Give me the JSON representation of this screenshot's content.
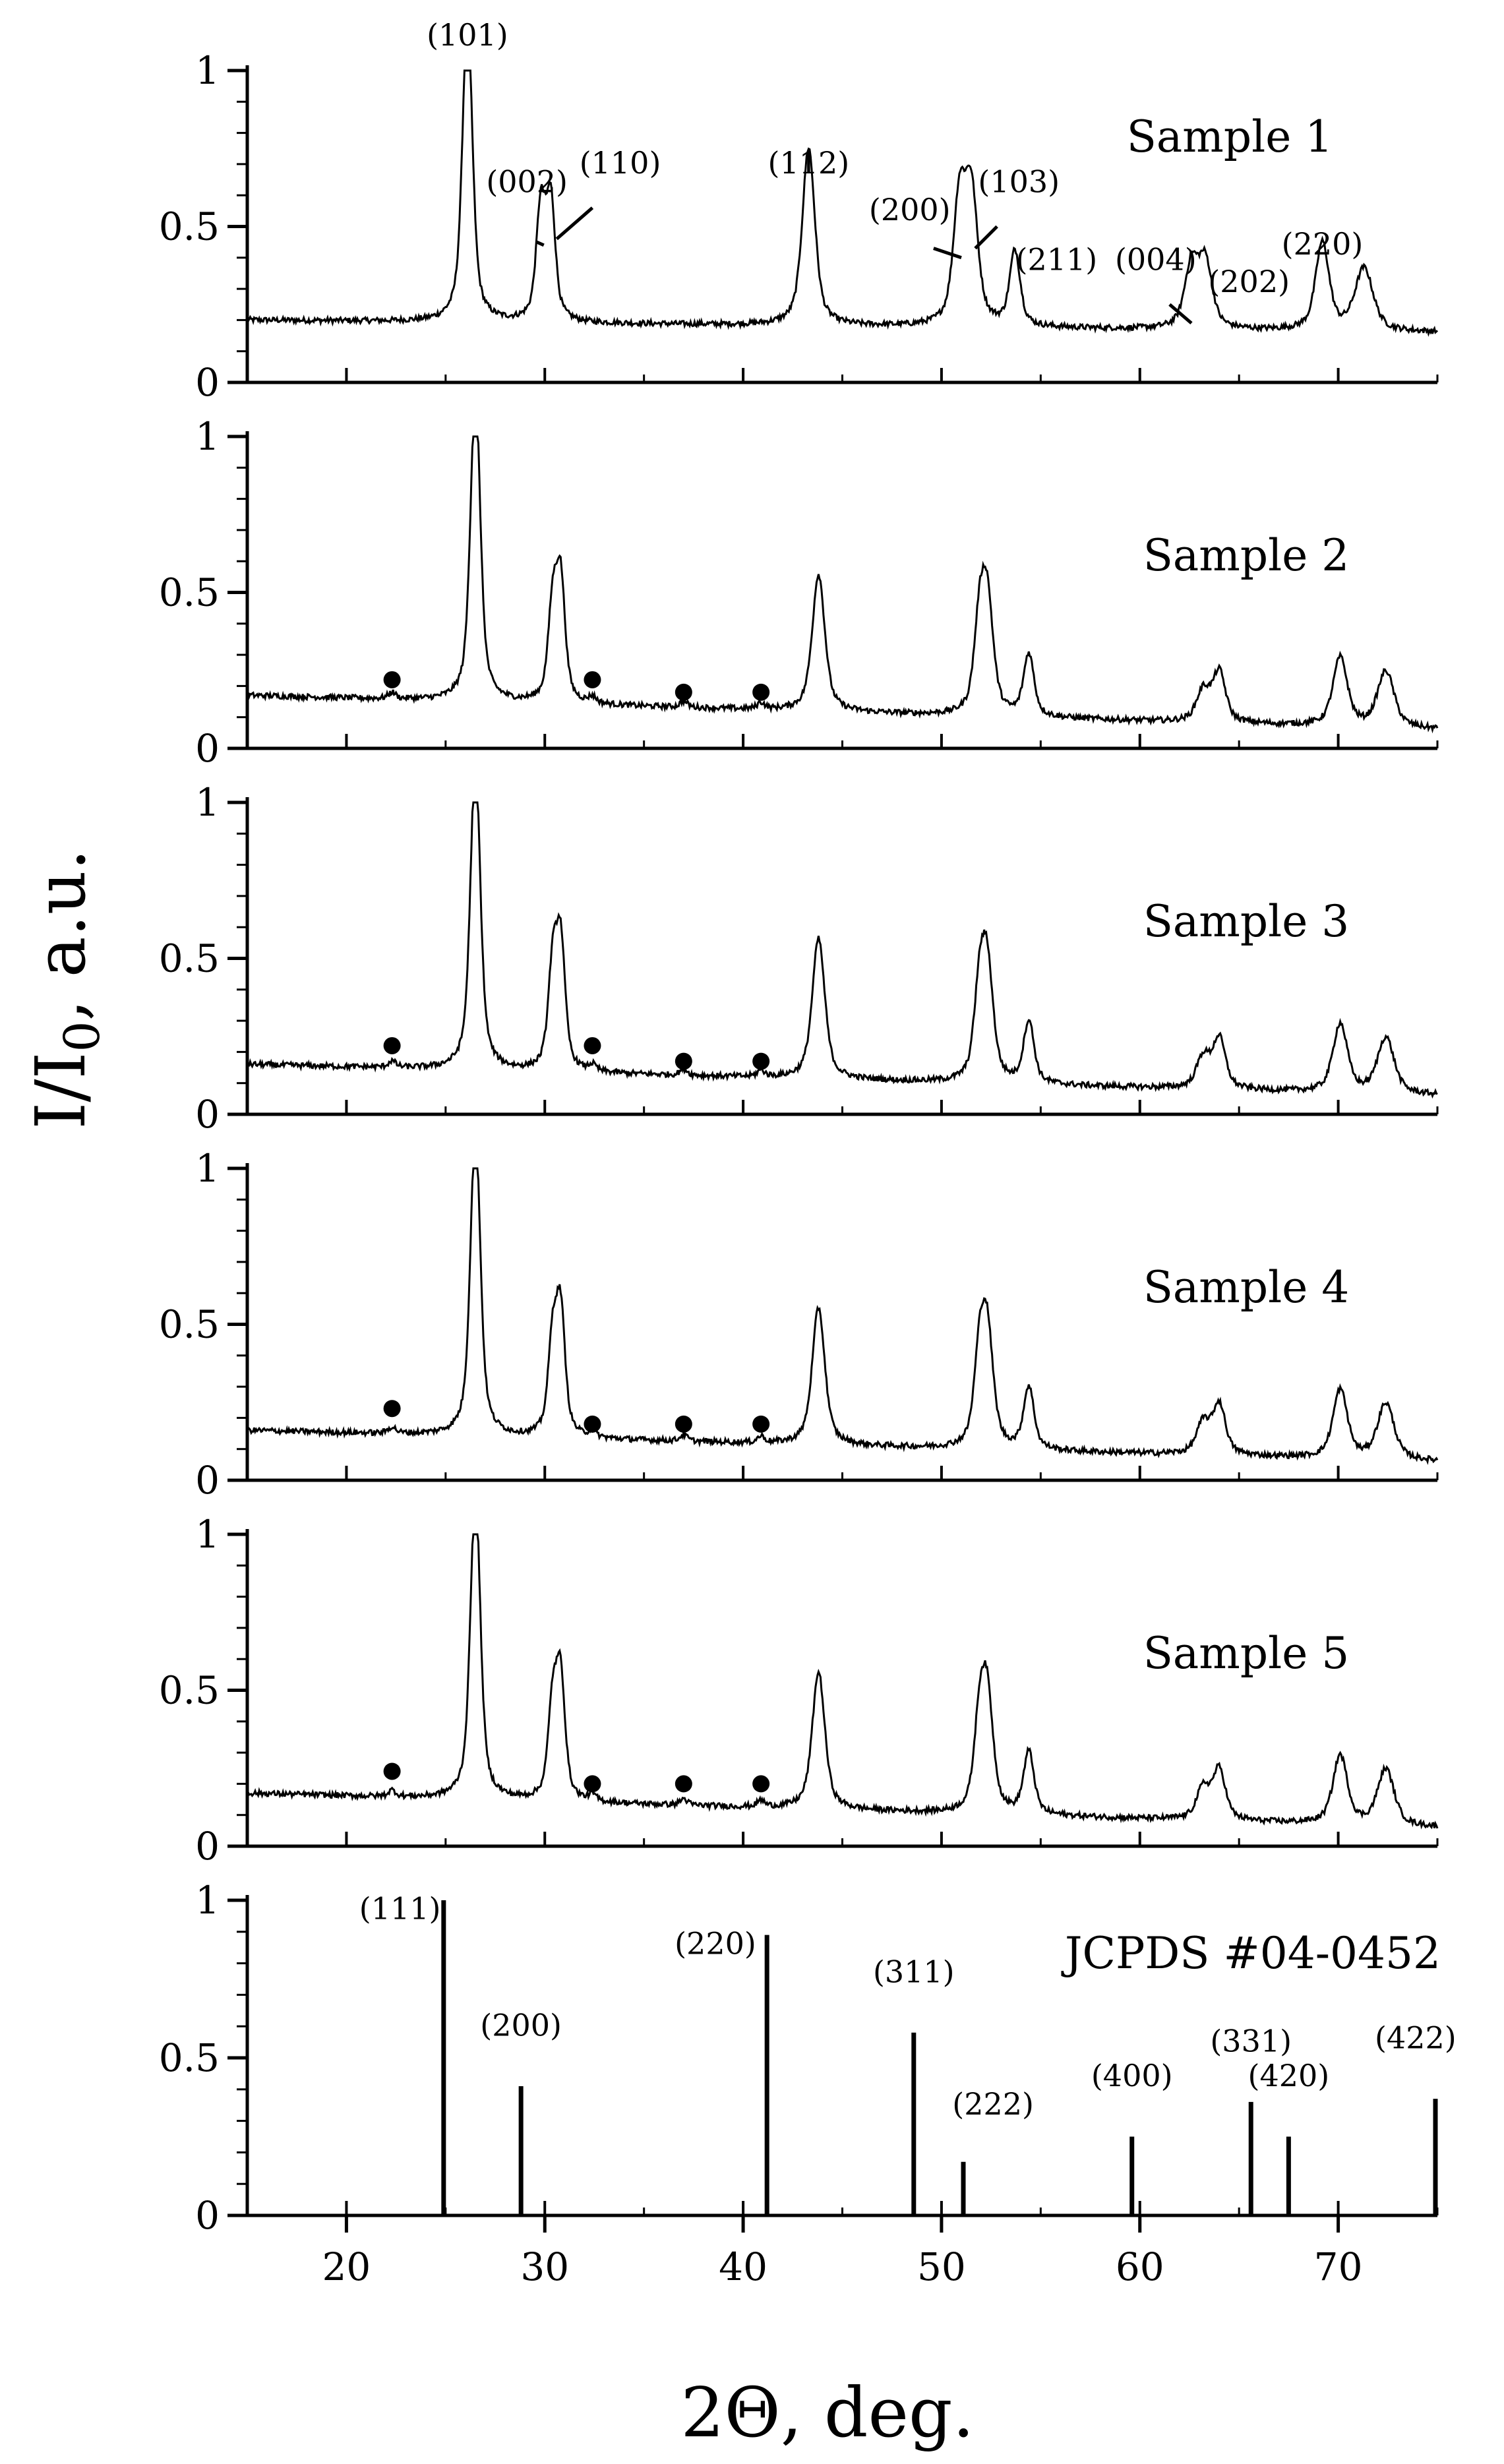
{
  "chart_data": {
    "type": "line",
    "layout": "vertically stacked panels sharing one x axis",
    "xlabel": "2Θ, deg.",
    "ylabel": "I/I0, a.u.",
    "ylabel_parts": {
      "main": "I/I",
      "sub": "0",
      "tail": ", a.u."
    },
    "xlim": [
      15,
      75
    ],
    "x_ticks": [
      20,
      30,
      40,
      50,
      60,
      70
    ],
    "y_ticks": [
      0,
      0.5,
      1
    ],
    "y_tick_labels": [
      "0",
      "0.5",
      "1"
    ],
    "panels": [
      {
        "name": "Sample 1",
        "type": "line",
        "ylim": [
          0,
          1
        ],
        "baseline": {
          "start": 0.2,
          "end": 0.16
        },
        "peaks": [
          {
            "x": 26.1,
            "y": 1.0,
            "w": 0.33
          },
          {
            "x": 29.8,
            "y": 0.36,
            "w": 0.3
          },
          {
            "x": 30.3,
            "y": 0.38,
            "w": 0.3
          },
          {
            "x": 43.3,
            "y": 0.57,
            "w": 0.42
          },
          {
            "x": 50.9,
            "y": 0.39,
            "w": 0.4
          },
          {
            "x": 51.5,
            "y": 0.42,
            "w": 0.42
          },
          {
            "x": 53.7,
            "y": 0.24,
            "w": 0.35
          },
          {
            "x": 62.6,
            "y": 0.2,
            "w": 0.45
          },
          {
            "x": 63.3,
            "y": 0.21,
            "w": 0.45
          },
          {
            "x": 69.2,
            "y": 0.28,
            "w": 0.45
          },
          {
            "x": 71.3,
            "y": 0.2,
            "w": 0.6
          }
        ],
        "peak_labels": [
          {
            "text": "(101)",
            "x": 26.1,
            "y": 1.08
          },
          {
            "text": "(002)",
            "x": 29.1,
            "y": 0.61
          },
          {
            "text": "(110)",
            "x": 33.8,
            "y": 0.67
          },
          {
            "text": "(112)",
            "x": 43.3,
            "y": 0.67
          },
          {
            "text": "(200)",
            "x": 48.4,
            "y": 0.52
          },
          {
            "text": "(103)",
            "x": 53.9,
            "y": 0.61
          },
          {
            "text": "(211)",
            "x": 55.8,
            "y": 0.36
          },
          {
            "text": "(004)",
            "x": 60.8,
            "y": 0.36
          },
          {
            "text": "(202)",
            "x": 65.5,
            "y": 0.29
          },
          {
            "text": "(220)",
            "x": 69.2,
            "y": 0.41
          }
        ],
        "leader_lines": [
          {
            "from": [
              29.6,
              0.45
            ],
            "to": [
              29.95,
              0.44
            ]
          },
          {
            "from": [
              32.4,
              0.56
            ],
            "to": [
              30.6,
              0.46
            ]
          },
          {
            "from": [
              49.6,
              0.43
            ],
            "to": [
              51.0,
              0.4
            ]
          },
          {
            "from": [
              52.8,
              0.5
            ],
            "to": [
              51.7,
              0.43
            ]
          },
          {
            "from": [
              61.5,
              0.25
            ],
            "to": [
              62.6,
              0.19
            ]
          }
        ],
        "markers": []
      },
      {
        "name": "Sample 2",
        "type": "line",
        "ylim": [
          0,
          1
        ],
        "baseline": {
          "start": 0.17,
          "end": 0.06
        },
        "peaks": [
          {
            "x": 22.3,
            "y": 0.02,
            "w": 0.25
          },
          {
            "x": 26.5,
            "y": 1.0,
            "w": 0.33
          },
          {
            "x": 30.4,
            "y": 0.3,
            "w": 0.3
          },
          {
            "x": 30.8,
            "y": 0.38,
            "w": 0.3
          },
          {
            "x": 32.4,
            "y": 0.02,
            "w": 0.25
          },
          {
            "x": 37.0,
            "y": 0.02,
            "w": 0.25
          },
          {
            "x": 40.9,
            "y": 0.02,
            "w": 0.25
          },
          {
            "x": 43.8,
            "y": 0.44,
            "w": 0.42
          },
          {
            "x": 51.9,
            "y": 0.25,
            "w": 0.35
          },
          {
            "x": 52.3,
            "y": 0.37,
            "w": 0.4
          },
          {
            "x": 54.4,
            "y": 0.2,
            "w": 0.35
          },
          {
            "x": 63.2,
            "y": 0.1,
            "w": 0.45
          },
          {
            "x": 64.0,
            "y": 0.16,
            "w": 0.42
          },
          {
            "x": 70.1,
            "y": 0.22,
            "w": 0.48
          },
          {
            "x": 72.4,
            "y": 0.18,
            "w": 0.55
          }
        ],
        "peak_labels": [],
        "leader_lines": [],
        "markers": [
          [
            22.3,
            0.22
          ],
          [
            32.4,
            0.22
          ],
          [
            37.0,
            0.18
          ],
          [
            40.9,
            0.18
          ]
        ]
      },
      {
        "name": "Sample 3",
        "type": "line",
        "ylim": [
          0,
          1
        ],
        "baseline": {
          "start": 0.16,
          "end": 0.06
        },
        "peaks": [
          {
            "x": 22.3,
            "y": 0.02,
            "w": 0.25
          },
          {
            "x": 26.5,
            "y": 1.0,
            "w": 0.33
          },
          {
            "x": 30.4,
            "y": 0.32,
            "w": 0.3
          },
          {
            "x": 30.8,
            "y": 0.4,
            "w": 0.3
          },
          {
            "x": 32.4,
            "y": 0.02,
            "w": 0.25
          },
          {
            "x": 37.0,
            "y": 0.02,
            "w": 0.25
          },
          {
            "x": 40.9,
            "y": 0.02,
            "w": 0.25
          },
          {
            "x": 43.8,
            "y": 0.45,
            "w": 0.42
          },
          {
            "x": 51.9,
            "y": 0.25,
            "w": 0.35
          },
          {
            "x": 52.3,
            "y": 0.37,
            "w": 0.4
          },
          {
            "x": 54.4,
            "y": 0.2,
            "w": 0.35
          },
          {
            "x": 63.2,
            "y": 0.1,
            "w": 0.45
          },
          {
            "x": 64.0,
            "y": 0.16,
            "w": 0.42
          },
          {
            "x": 70.1,
            "y": 0.22,
            "w": 0.48
          },
          {
            "x": 72.4,
            "y": 0.18,
            "w": 0.55
          }
        ],
        "peak_labels": [],
        "leader_lines": [],
        "markers": [
          [
            22.3,
            0.22
          ],
          [
            32.4,
            0.22
          ],
          [
            37.0,
            0.17
          ],
          [
            40.9,
            0.17
          ]
        ]
      },
      {
        "name": "Sample 4",
        "type": "line",
        "ylim": [
          0,
          1
        ],
        "baseline": {
          "start": 0.16,
          "end": 0.06
        },
        "peaks": [
          {
            "x": 22.3,
            "y": 0.02,
            "w": 0.25
          },
          {
            "x": 26.5,
            "y": 1.0,
            "w": 0.33
          },
          {
            "x": 30.4,
            "y": 0.3,
            "w": 0.3
          },
          {
            "x": 30.8,
            "y": 0.39,
            "w": 0.3
          },
          {
            "x": 32.4,
            "y": 0.02,
            "w": 0.25
          },
          {
            "x": 37.0,
            "y": 0.02,
            "w": 0.25
          },
          {
            "x": 40.9,
            "y": 0.02,
            "w": 0.25
          },
          {
            "x": 43.8,
            "y": 0.44,
            "w": 0.42
          },
          {
            "x": 51.9,
            "y": 0.25,
            "w": 0.35
          },
          {
            "x": 52.3,
            "y": 0.37,
            "w": 0.4
          },
          {
            "x": 54.4,
            "y": 0.2,
            "w": 0.35
          },
          {
            "x": 63.2,
            "y": 0.1,
            "w": 0.45
          },
          {
            "x": 64.0,
            "y": 0.16,
            "w": 0.42
          },
          {
            "x": 70.1,
            "y": 0.22,
            "w": 0.48
          },
          {
            "x": 72.4,
            "y": 0.18,
            "w": 0.55
          }
        ],
        "peak_labels": [],
        "leader_lines": [],
        "markers": [
          [
            22.3,
            0.23
          ],
          [
            32.4,
            0.18
          ],
          [
            37.0,
            0.18
          ],
          [
            40.9,
            0.18
          ]
        ]
      },
      {
        "name": "Sample 5",
        "type": "line",
        "ylim": [
          0,
          1
        ],
        "baseline": {
          "start": 0.17,
          "end": 0.06
        },
        "peaks": [
          {
            "x": 22.3,
            "y": 0.02,
            "w": 0.25
          },
          {
            "x": 26.5,
            "y": 1.0,
            "w": 0.33
          },
          {
            "x": 30.4,
            "y": 0.3,
            "w": 0.3
          },
          {
            "x": 30.8,
            "y": 0.38,
            "w": 0.3
          },
          {
            "x": 32.4,
            "y": 0.02,
            "w": 0.25
          },
          {
            "x": 37.0,
            "y": 0.02,
            "w": 0.25
          },
          {
            "x": 40.9,
            "y": 0.02,
            "w": 0.25
          },
          {
            "x": 43.8,
            "y": 0.44,
            "w": 0.42
          },
          {
            "x": 51.9,
            "y": 0.25,
            "w": 0.35
          },
          {
            "x": 52.3,
            "y": 0.37,
            "w": 0.4
          },
          {
            "x": 54.4,
            "y": 0.2,
            "w": 0.35
          },
          {
            "x": 63.2,
            "y": 0.1,
            "w": 0.45
          },
          {
            "x": 64.0,
            "y": 0.16,
            "w": 0.42
          },
          {
            "x": 70.1,
            "y": 0.22,
            "w": 0.48
          },
          {
            "x": 72.4,
            "y": 0.18,
            "w": 0.55
          }
        ],
        "peak_labels": [],
        "leader_lines": [],
        "markers": [
          [
            22.3,
            0.24
          ],
          [
            32.4,
            0.2
          ],
          [
            37.0,
            0.2
          ],
          [
            40.9,
            0.2
          ]
        ]
      },
      {
        "name": "JCPDS #04-0452",
        "type": "stick",
        "ylim": [
          0,
          1
        ],
        "sticks": [
          {
            "x": 24.9,
            "y": 1.0,
            "label": "(111)",
            "lx": 22.7,
            "ly": 0.94
          },
          {
            "x": 28.8,
            "y": 0.41,
            "label": "(200)",
            "lx": 28.8,
            "ly": 0.57
          },
          {
            "x": 41.2,
            "y": 0.89,
            "label": "(220)",
            "lx": 38.6,
            "ly": 0.83
          },
          {
            "x": 48.6,
            "y": 0.58,
            "label": "(311)",
            "lx": 48.6,
            "ly": 0.74
          },
          {
            "x": 51.1,
            "y": 0.17,
            "label": "(222)",
            "lx": 52.6,
            "ly": 0.32
          },
          {
            "x": 59.6,
            "y": 0.25,
            "label": "(400)",
            "lx": 59.6,
            "ly": 0.41
          },
          {
            "x": 65.6,
            "y": 0.36,
            "label": "(331)",
            "lx": 65.6,
            "ly": 0.52
          },
          {
            "x": 67.5,
            "y": 0.25,
            "label": "(420)",
            "lx": 67.5,
            "ly": 0.41
          },
          {
            "x": 74.9,
            "y": 0.37,
            "label": "(422)",
            "lx": 73.9,
            "ly": 0.53
          }
        ]
      }
    ]
  }
}
